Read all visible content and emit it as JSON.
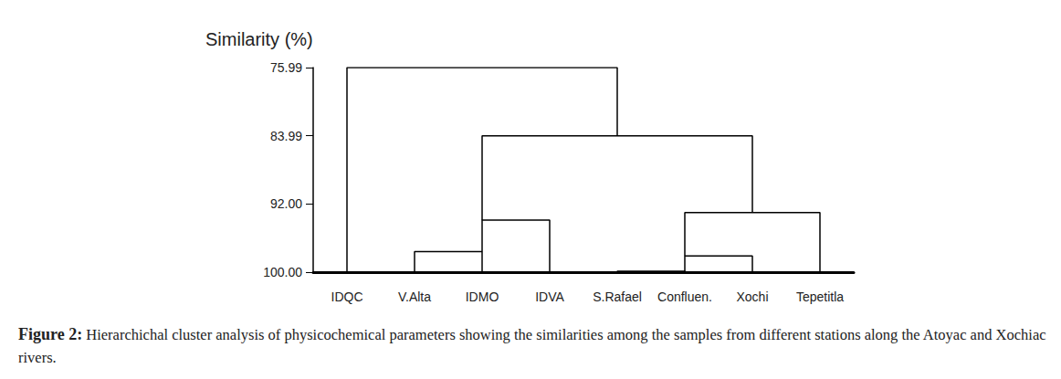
{
  "chart_data": {
    "type": "dendrogram",
    "ylabel": "Similarity (%)",
    "ylim": [
      75.99,
      100
    ],
    "yticks": [
      75.99,
      83.99,
      {
        "value": 92,
        "label": "92.00"
      },
      {
        "value": 100,
        "label": "100.00"
      }
    ],
    "color": "#000000",
    "tree": {
      "similarity": 75.99,
      "children": [
        {
          "leaf": "IDQC"
        },
        {
          "similarity": 84.0,
          "children": [
            {
              "similarity": 93.9,
              "children": [
                {
                  "similarity": 97.6,
                  "children": [
                    {
                      "leaf": "V.Alta"
                    },
                    {
                      "leaf": "IDMO"
                    }
                  ]
                },
                {
                  "leaf": "IDVA"
                }
              ]
            },
            {
              "similarity": 93.0,
              "children": [
                {
                  "similarity": 98.1,
                  "children": [
                    {
                      "similarity": 99.9,
                      "children": [
                        {
                          "leaf": "S.Rafael"
                        },
                        {
                          "leaf": "Confluen."
                        }
                      ]
                    },
                    {
                      "leaf": "Xochi"
                    }
                  ]
                },
                {
                  "leaf": "Tepetitla"
                }
              ]
            }
          ]
        }
      ]
    },
    "caption": {
      "label": "Figure 2:",
      "text": "Hierarchichal cluster analysis of physicochemical parameters showing the similarities among the samples from different stations along the Atoyac and Xochiac rivers."
    }
  }
}
